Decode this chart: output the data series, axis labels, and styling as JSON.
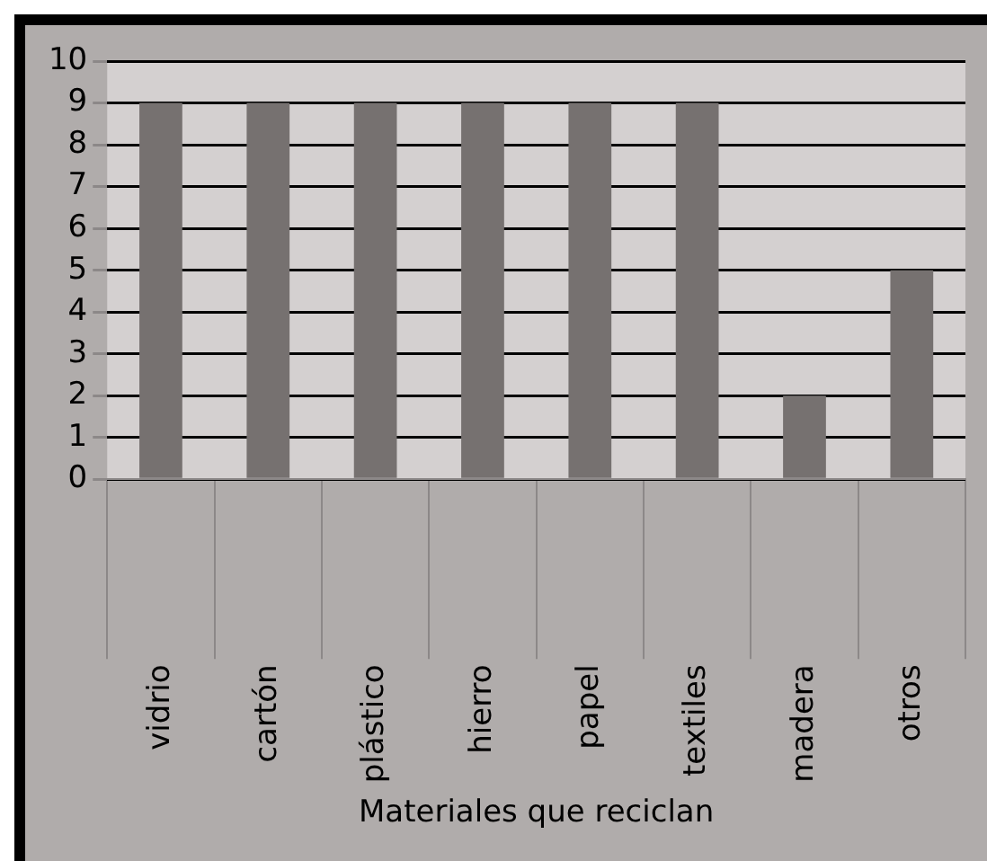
{
  "chart_data": {
    "type": "bar",
    "xlabel": "Materiales que reciclan",
    "categories": [
      "vidrio",
      "cartón",
      "plástico",
      "hierro",
      "papel",
      "textiles",
      "madera",
      "otros"
    ],
    "values": [
      9,
      9,
      9,
      9,
      9,
      9,
      2,
      5
    ],
    "color": "#767170",
    "ylim": [
      0,
      10
    ],
    "yticks": [
      0,
      1,
      2,
      3,
      4,
      5,
      6,
      7,
      8,
      9,
      10
    ],
    "grid": "y"
  }
}
